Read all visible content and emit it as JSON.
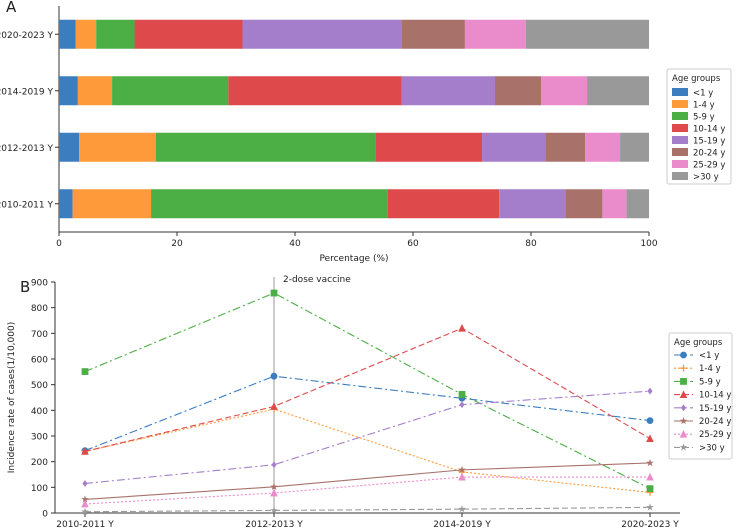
{
  "chart_data": [
    {
      "panel_label": "A",
      "type": "bar",
      "orientation": "horizontal",
      "stacked": true,
      "categories": [
        "2020-2023 Y",
        "2014-2019 Y",
        "2012-2013 Y",
        "2010-2011 Y"
      ],
      "xlabel": "Percentage (%)",
      "xlim": [
        0,
        100
      ],
      "xticks": [
        0,
        20,
        40,
        60,
        80,
        100
      ],
      "legend_title": "Age groups",
      "legend_position": "right",
      "series": [
        {
          "name": "<1 y",
          "color": "#3b7dbf",
          "values": [
            2.8,
            3.2,
            3.4,
            2.3
          ]
        },
        {
          "name": "1-4 y",
          "color": "#ff9a3a",
          "values": [
            3.5,
            5.8,
            13.0,
            13.3
          ]
        },
        {
          "name": "5-9 y",
          "color": "#4caf45",
          "values": [
            6.5,
            19.7,
            37.2,
            40.1
          ]
        },
        {
          "name": "10-14 y",
          "color": "#de4a4b",
          "values": [
            18.3,
            29.4,
            18.1,
            18.9
          ]
        },
        {
          "name": "15-19 y",
          "color": "#a57ecb",
          "values": [
            26.9,
            15.8,
            10.7,
            11.2
          ]
        },
        {
          "name": "20-24 y",
          "color": "#a8726a",
          "values": [
            10.8,
            7.8,
            6.8,
            6.3
          ]
        },
        {
          "name": "25-29 y",
          "color": "#ea8ccb",
          "values": [
            10.3,
            7.8,
            5.9,
            4.1
          ]
        },
        {
          "name": ">30 y",
          "color": "#999999",
          "values": [
            20.9,
            10.5,
            4.9,
            3.8
          ]
        }
      ]
    },
    {
      "panel_label": "B",
      "type": "line",
      "x": [
        "2010-2011 Y",
        "2012-2013 Y",
        "2014-2019 Y",
        "2020-2023 Y"
      ],
      "ylabel": "Incidence rate of cases(1/10,000)",
      "ylim": [
        0,
        900
      ],
      "yticks": [
        0,
        100,
        200,
        300,
        400,
        500,
        600,
        700,
        800,
        900
      ],
      "annotation": {
        "text": "2-dose vaccine",
        "x": "2012-2013 Y"
      },
      "legend_title": "Age groups",
      "legend_position": "right",
      "series": [
        {
          "name": "<1 y",
          "color": "#3b7dbf",
          "dash": "8,3,2,3",
          "marker": "circle",
          "values": [
            243,
            533,
            447,
            360
          ]
        },
        {
          "name": "1-4 y",
          "color": "#ff9a3a",
          "dash": "2,2",
          "marker": "plus",
          "values": [
            240,
            405,
            160,
            80
          ]
        },
        {
          "name": "5-9 y",
          "color": "#4caf45",
          "dash": "8,3,2,3",
          "marker": "square",
          "values": [
            551,
            857,
            462,
            95
          ]
        },
        {
          "name": "10-14 y",
          "color": "#de4a4b",
          "dash": "6,3",
          "marker": "triangle",
          "values": [
            240,
            415,
            720,
            290
          ]
        },
        {
          "name": "15-19 y",
          "color": "#a57ecb",
          "dash": "8,3,2,3",
          "marker": "diamond",
          "values": [
            115,
            188,
            422,
            475
          ]
        },
        {
          "name": "20-24 y",
          "color": "#a8726a",
          "dash": "",
          "marker": "star",
          "values": [
            53,
            102,
            168,
            195
          ]
        },
        {
          "name": "25-29 y",
          "color": "#ea8ccb",
          "dash": "2,2",
          "marker": "triangle",
          "values": [
            35,
            78,
            140,
            140
          ]
        },
        {
          "name": ">30 y",
          "color": "#999999",
          "dash": "6,3",
          "marker": "star",
          "values": [
            5,
            10,
            15,
            22
          ]
        }
      ]
    }
  ]
}
